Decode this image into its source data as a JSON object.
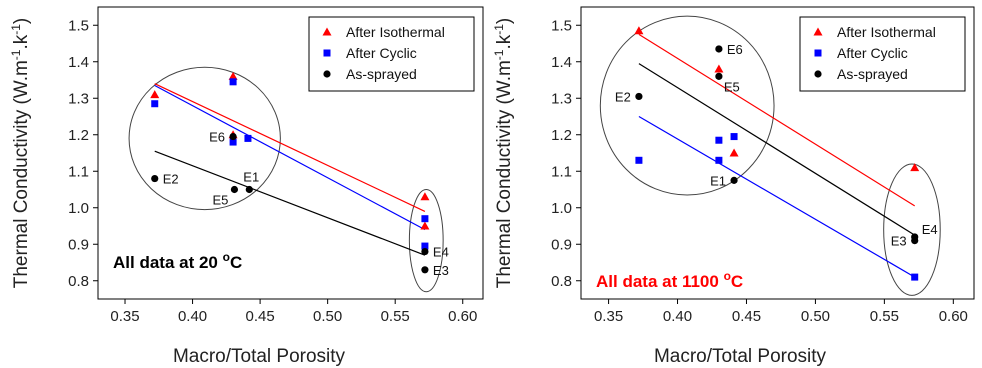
{
  "chart_data": [
    {
      "type": "scatter",
      "xlabel": "Macro/Total Porosity",
      "ylabel": "Thermal Conductivity (W.m",
      "ylabel_sup1": "-1",
      "ylabel_mid": ".k",
      "ylabel_sup2": "-1",
      "ylabel_end": ")",
      "xlim": [
        0.33,
        0.615
      ],
      "ylim": [
        0.75,
        1.55
      ],
      "xticks": [
        0.35,
        0.4,
        0.45,
        0.5,
        0.55,
        0.6
      ],
      "xtick_labels": [
        "0.35",
        "0.40",
        "0.45",
        "0.50",
        "0.55",
        "0.60"
      ],
      "yticks": [
        0.8,
        0.9,
        1.0,
        1.1,
        1.2,
        1.3,
        1.4,
        1.5
      ],
      "ytick_labels": [
        "0.8",
        "0.9",
        "1.0",
        "1.1",
        "1.2",
        "1.3",
        "1.4",
        "1.5"
      ],
      "grid": false,
      "legend_position": "top-right",
      "annotation": {
        "text": "All data at 20 ",
        "sup": "o",
        "tail": "C",
        "color": "#000000"
      },
      "series": [
        {
          "name": "After Isothermal",
          "marker": "triangle",
          "color": "#ff0000",
          "points": [
            [
              0.372,
              1.31
            ],
            [
              0.43,
              1.36
            ],
            [
              0.43,
              1.2
            ],
            [
              0.572,
              0.95
            ],
            [
              0.572,
              1.03
            ]
          ],
          "fit": [
            [
              0.372,
              1.34
            ],
            [
              0.572,
              0.99
            ]
          ]
        },
        {
          "name": "After Cyclic",
          "marker": "square",
          "color": "#0000ff",
          "points": [
            [
              0.372,
              1.285
            ],
            [
              0.43,
              1.345
            ],
            [
              0.43,
              1.18
            ],
            [
              0.441,
              1.19
            ],
            [
              0.572,
              0.97
            ],
            [
              0.572,
              0.895
            ]
          ],
          "fit": [
            [
              0.372,
              1.335
            ],
            [
              0.572,
              0.94
            ]
          ]
        },
        {
          "name": "As-sprayed",
          "marker": "circle",
          "color": "#000000",
          "points": [
            [
              0.43,
              1.195
            ],
            [
              0.372,
              1.08
            ],
            [
              0.431,
              1.05
            ],
            [
              0.442,
              1.05
            ],
            [
              0.572,
              0.88
            ],
            [
              0.572,
              0.83
            ]
          ],
          "fit": [
            [
              0.372,
              1.155
            ],
            [
              0.572,
              0.87
            ]
          ]
        }
      ],
      "point_labels": [
        {
          "text": "E6",
          "x": 0.43,
          "y": 1.195,
          "side": "left"
        },
        {
          "text": "E2",
          "x": 0.372,
          "y": 1.08,
          "side": "right"
        },
        {
          "text": "E5",
          "x": 0.431,
          "y": 1.05,
          "side": "below-left"
        },
        {
          "text": "E1",
          "x": 0.442,
          "y": 1.05,
          "side": "above"
        },
        {
          "text": "E4",
          "x": 0.572,
          "y": 0.88,
          "side": "right"
        },
        {
          "text": "E3",
          "x": 0.572,
          "y": 0.83,
          "side": "right"
        }
      ],
      "circles": [
        {
          "cx": 0.409,
          "cy": 1.19,
          "rx": 0.056,
          "ry": 0.195
        },
        {
          "cx": 0.573,
          "cy": 0.91,
          "rx": 0.0125,
          "ry": 0.14
        }
      ]
    },
    {
      "type": "scatter",
      "xlabel": "Macro/Total Porosity",
      "ylabel": "Thermal Conductivity (W.m",
      "ylabel_sup1": "-1",
      "ylabel_mid": ".k",
      "ylabel_sup2": "-1",
      "ylabel_end": ")",
      "xlim": [
        0.33,
        0.615
      ],
      "ylim": [
        0.75,
        1.55
      ],
      "xticks": [
        0.35,
        0.4,
        0.45,
        0.5,
        0.55,
        0.6
      ],
      "xtick_labels": [
        "0.35",
        "0.40",
        "0.45",
        "0.50",
        "0.55",
        "0.60"
      ],
      "yticks": [
        0.8,
        0.9,
        1.0,
        1.1,
        1.2,
        1.3,
        1.4,
        1.5
      ],
      "ytick_labels": [
        "0.8",
        "0.9",
        "1.0",
        "1.1",
        "1.2",
        "1.3",
        "1.4",
        "1.5"
      ],
      "grid": false,
      "legend_position": "top-right",
      "annotation": {
        "text": "All data at 1100 ",
        "sup": "o",
        "tail": "C",
        "color": "#ff0000"
      },
      "series": [
        {
          "name": "After Isothermal",
          "marker": "triangle",
          "color": "#ff0000",
          "points": [
            [
              0.372,
              1.485
            ],
            [
              0.43,
              1.38
            ],
            [
              0.441,
              1.15
            ],
            [
              0.572,
              1.11
            ]
          ],
          "fit": [
            [
              0.372,
              1.475
            ],
            [
              0.572,
              1.005
            ]
          ]
        },
        {
          "name": "After Cyclic",
          "marker": "square",
          "color": "#0000ff",
          "points": [
            [
              0.372,
              1.13
            ],
            [
              0.43,
              1.185
            ],
            [
              0.43,
              1.13
            ],
            [
              0.441,
              1.195
            ],
            [
              0.572,
              0.81
            ]
          ],
          "fit": [
            [
              0.372,
              1.25
            ],
            [
              0.572,
              0.81
            ]
          ]
        },
        {
          "name": "As-sprayed",
          "marker": "circle",
          "color": "#000000",
          "points": [
            [
              0.43,
              1.435
            ],
            [
              0.43,
              1.36
            ],
            [
              0.372,
              1.305
            ],
            [
              0.441,
              1.075
            ],
            [
              0.572,
              0.92
            ],
            [
              0.572,
              0.91
            ]
          ],
          "fit": [
            [
              0.372,
              1.395
            ],
            [
              0.572,
              0.925
            ]
          ]
        }
      ],
      "point_labels": [
        {
          "text": "E6",
          "x": 0.43,
          "y": 1.435,
          "side": "right"
        },
        {
          "text": "E5",
          "x": 0.43,
          "y": 1.36,
          "side": "below-right"
        },
        {
          "text": "E2",
          "x": 0.372,
          "y": 1.305,
          "side": "left"
        },
        {
          "text": "E1",
          "x": 0.441,
          "y": 1.075,
          "side": "left"
        },
        {
          "text": "E4",
          "x": 0.572,
          "y": 0.92,
          "side": "above-right"
        },
        {
          "text": "E3",
          "x": 0.572,
          "y": 0.91,
          "side": "left"
        }
      ],
      "circles": [
        {
          "cx": 0.407,
          "cy": 1.28,
          "rx": 0.063,
          "ry": 0.245
        },
        {
          "cx": 0.57,
          "cy": 0.94,
          "rx": 0.0205,
          "ry": 0.18
        }
      ]
    }
  ]
}
